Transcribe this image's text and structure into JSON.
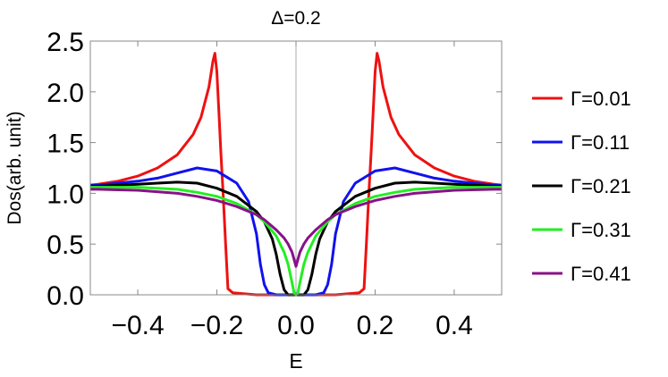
{
  "chart_data": {
    "type": "line",
    "title": "Δ=0.2",
    "xlabel": "E",
    "ylabel": "Dos(arb. unit)",
    "xlim": [
      -0.52,
      0.52
    ],
    "ylim": [
      0.0,
      2.5
    ],
    "x_ticks": [
      "−0.4",
      "−0.2",
      "0.0",
      "0.2",
      "0.4"
    ],
    "x_tick_values": [
      -0.4,
      -0.2,
      0.0,
      0.2,
      0.4
    ],
    "y_ticks": [
      "0.0",
      "0.5",
      "1.0",
      "1.5",
      "2.0",
      "2.5"
    ],
    "y_tick_values": [
      0.0,
      0.5,
      1.0,
      1.5,
      2.0,
      2.5
    ],
    "grid": false,
    "zero_line": true,
    "legend_position": "right",
    "series": [
      {
        "name": "Γ=0.01",
        "color": "#ee1111",
        "x": [
          0.0,
          0.1,
          0.16,
          0.172,
          0.178,
          0.185,
          0.19,
          0.195,
          0.2,
          0.205,
          0.21,
          0.22,
          0.24,
          0.26,
          0.3,
          0.35,
          0.4,
          0.45,
          0.5,
          0.52
        ],
        "y": [
          0.0,
          0.0,
          0.02,
          0.06,
          0.5,
          1.05,
          1.4,
          1.8,
          2.2,
          2.38,
          2.3,
          2.05,
          1.75,
          1.58,
          1.38,
          1.25,
          1.17,
          1.12,
          1.09,
          1.08
        ]
      },
      {
        "name": "Γ=0.11",
        "color": "#1111ee",
        "x": [
          0.0,
          0.05,
          0.07,
          0.08,
          0.09,
          0.1,
          0.12,
          0.15,
          0.2,
          0.25,
          0.3,
          0.35,
          0.4,
          0.45,
          0.5,
          0.52
        ],
        "y": [
          0.0,
          0.0,
          0.02,
          0.1,
          0.3,
          0.6,
          0.92,
          1.1,
          1.22,
          1.25,
          1.2,
          1.15,
          1.12,
          1.1,
          1.08,
          1.08
        ]
      },
      {
        "name": "Γ=0.21",
        "color": "#000000",
        "x": [
          0.0,
          0.02,
          0.03,
          0.04,
          0.05,
          0.06,
          0.08,
          0.1,
          0.15,
          0.2,
          0.25,
          0.3,
          0.35,
          0.4,
          0.5,
          0.52
        ],
        "y": [
          0.0,
          0.0,
          0.05,
          0.2,
          0.4,
          0.55,
          0.72,
          0.82,
          0.97,
          1.05,
          1.1,
          1.11,
          1.1,
          1.09,
          1.07,
          1.07
        ]
      },
      {
        "name": "Γ=0.31",
        "color": "#22ee22",
        "x": [
          0.0,
          0.005,
          0.01,
          0.02,
          0.03,
          0.05,
          0.08,
          0.1,
          0.15,
          0.2,
          0.25,
          0.3,
          0.4,
          0.5,
          0.52
        ],
        "y": [
          0.0,
          0.02,
          0.12,
          0.3,
          0.42,
          0.58,
          0.72,
          0.79,
          0.9,
          0.97,
          1.01,
          1.04,
          1.06,
          1.06,
          1.06
        ]
      },
      {
        "name": "Γ=0.41",
        "color": "#881188",
        "x": [
          0.0,
          0.005,
          0.01,
          0.02,
          0.03,
          0.05,
          0.08,
          0.1,
          0.15,
          0.2,
          0.25,
          0.3,
          0.4,
          0.5,
          0.52
        ],
        "y": [
          0.28,
          0.35,
          0.42,
          0.5,
          0.56,
          0.64,
          0.74,
          0.79,
          0.87,
          0.93,
          0.97,
          1.0,
          1.03,
          1.04,
          1.04
        ]
      }
    ]
  }
}
